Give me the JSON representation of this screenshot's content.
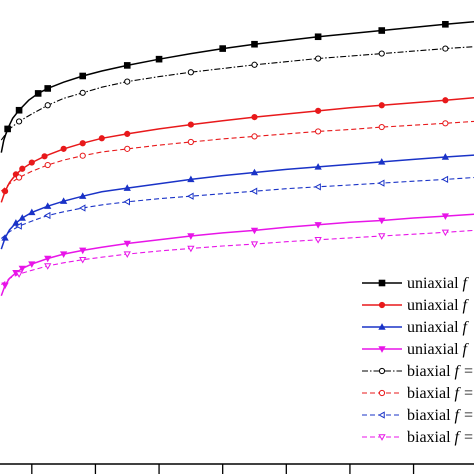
{
  "chart_data": {
    "type": "line",
    "title": "",
    "xlabel": "",
    "ylabel": "",
    "xlim": [
      0,
      7.45
    ],
    "ylim": [
      0,
      7.45
    ],
    "grid": false,
    "legend_placement": "bottom-right",
    "x_tick_values": [
      0.5,
      1.5,
      2.5,
      3.5,
      4.5,
      5.5,
      6.5
    ],
    "series": [
      {
        "name": "uniaxial f",
        "color": "#000000",
        "dash": "solid",
        "marker": "square",
        "marker_fill": "filled",
        "points": [
          [
            0.02,
            5.0
          ],
          [
            0.06,
            5.2
          ],
          [
            0.12,
            5.38
          ],
          [
            0.2,
            5.55
          ],
          [
            0.3,
            5.68
          ],
          [
            0.45,
            5.84
          ],
          [
            0.6,
            5.95
          ],
          [
            0.75,
            6.03
          ],
          [
            1.0,
            6.13
          ],
          [
            1.3,
            6.23
          ],
          [
            1.6,
            6.31
          ],
          [
            2.0,
            6.4
          ],
          [
            2.5,
            6.5
          ],
          [
            3.0,
            6.59
          ],
          [
            3.5,
            6.67
          ],
          [
            4.0,
            6.74
          ],
          [
            4.5,
            6.8
          ],
          [
            5.0,
            6.86
          ],
          [
            5.5,
            6.91
          ],
          [
            6.0,
            6.96
          ],
          [
            6.5,
            7.01
          ],
          [
            7.0,
            7.06
          ],
          [
            7.45,
            7.1
          ]
        ],
        "marker_every": [
          2,
          4,
          6,
          7,
          9,
          11,
          12,
          14,
          15,
          17,
          19,
          21
        ]
      },
      {
        "name": "biaxial f",
        "color": "#000000",
        "dash": "dashdot",
        "marker": "circle",
        "marker_fill": "open",
        "points": [
          [
            0.02,
            5.2
          ],
          [
            0.15,
            5.38
          ],
          [
            0.3,
            5.5
          ],
          [
            0.5,
            5.62
          ],
          [
            0.75,
            5.76
          ],
          [
            1.0,
            5.87
          ],
          [
            1.3,
            5.96
          ],
          [
            1.6,
            6.05
          ],
          [
            2.0,
            6.14
          ],
          [
            2.5,
            6.22
          ],
          [
            3.0,
            6.29
          ],
          [
            3.5,
            6.35
          ],
          [
            4.0,
            6.41
          ],
          [
            4.5,
            6.46
          ],
          [
            5.0,
            6.51
          ],
          [
            5.5,
            6.55
          ],
          [
            6.0,
            6.59
          ],
          [
            6.5,
            6.63
          ],
          [
            7.0,
            6.67
          ],
          [
            7.45,
            6.7
          ]
        ],
        "marker_every": [
          2,
          4,
          6,
          8,
          10,
          12,
          14,
          16,
          18
        ]
      },
      {
        "name": "uniaxial f",
        "color": "#e8191b",
        "dash": "solid",
        "marker": "circle",
        "marker_fill": "filled",
        "points": [
          [
            0.02,
            4.2
          ],
          [
            0.08,
            4.38
          ],
          [
            0.15,
            4.52
          ],
          [
            0.25,
            4.65
          ],
          [
            0.35,
            4.74
          ],
          [
            0.5,
            4.84
          ],
          [
            0.7,
            4.94
          ],
          [
            1.0,
            5.06
          ],
          [
            1.3,
            5.15
          ],
          [
            1.6,
            5.23
          ],
          [
            2.0,
            5.3
          ],
          [
            2.5,
            5.38
          ],
          [
            3.0,
            5.45
          ],
          [
            3.5,
            5.51
          ],
          [
            4.0,
            5.57
          ],
          [
            4.5,
            5.62
          ],
          [
            5.0,
            5.67
          ],
          [
            5.5,
            5.72
          ],
          [
            6.0,
            5.76
          ],
          [
            6.5,
            5.8
          ],
          [
            7.0,
            5.84
          ],
          [
            7.45,
            5.88
          ]
        ],
        "marker_every": [
          1,
          3,
          4,
          5,
          6,
          7,
          8,
          9,
          10,
          12,
          14,
          16,
          18,
          20
        ]
      },
      {
        "name": "biaxial f",
        "color": "#e8191b",
        "dash": "dash",
        "marker": "circle",
        "marker_fill": "open",
        "points": [
          [
            0.02,
            4.38
          ],
          [
            0.15,
            4.5
          ],
          [
            0.3,
            4.6
          ],
          [
            0.5,
            4.7
          ],
          [
            0.75,
            4.8
          ],
          [
            1.0,
            4.88
          ],
          [
            1.3,
            4.95
          ],
          [
            1.6,
            5.01
          ],
          [
            2.0,
            5.06
          ],
          [
            2.5,
            5.12
          ],
          [
            3.0,
            5.17
          ],
          [
            3.5,
            5.22
          ],
          [
            4.0,
            5.26
          ],
          [
            4.5,
            5.3
          ],
          [
            5.0,
            5.34
          ],
          [
            5.5,
            5.37
          ],
          [
            6.0,
            5.41
          ],
          [
            6.5,
            5.44
          ],
          [
            7.0,
            5.47
          ],
          [
            7.45,
            5.5
          ]
        ],
        "marker_every": [
          2,
          4,
          6,
          8,
          10,
          12,
          14,
          16,
          18
        ]
      },
      {
        "name": "uniaxial f",
        "color": "#1a33c7",
        "dash": "solid",
        "marker": "triangle-up",
        "marker_fill": "filled",
        "points": [
          [
            0.02,
            3.45
          ],
          [
            0.08,
            3.63
          ],
          [
            0.15,
            3.76
          ],
          [
            0.25,
            3.87
          ],
          [
            0.35,
            3.95
          ],
          [
            0.5,
            4.04
          ],
          [
            0.75,
            4.14
          ],
          [
            1.0,
            4.22
          ],
          [
            1.3,
            4.3
          ],
          [
            1.6,
            4.37
          ],
          [
            2.0,
            4.43
          ],
          [
            2.5,
            4.5
          ],
          [
            3.0,
            4.57
          ],
          [
            3.5,
            4.63
          ],
          [
            4.0,
            4.68
          ],
          [
            4.5,
            4.73
          ],
          [
            5.0,
            4.77
          ],
          [
            5.5,
            4.81
          ],
          [
            6.0,
            4.85
          ],
          [
            6.5,
            4.89
          ],
          [
            7.0,
            4.93
          ],
          [
            7.45,
            4.96
          ]
        ],
        "marker_every": [
          1,
          3,
          4,
          5,
          6,
          7,
          8,
          10,
          12,
          14,
          16,
          18,
          20
        ]
      },
      {
        "name": "biaxial f",
        "color": "#1a33c7",
        "dash": "dash",
        "marker": "triangle-left",
        "marker_fill": "open",
        "points": [
          [
            0.02,
            3.62
          ],
          [
            0.15,
            3.73
          ],
          [
            0.3,
            3.82
          ],
          [
            0.5,
            3.9
          ],
          [
            0.75,
            3.99
          ],
          [
            1.0,
            4.05
          ],
          [
            1.3,
            4.11
          ],
          [
            1.6,
            4.16
          ],
          [
            2.0,
            4.21
          ],
          [
            2.5,
            4.26
          ],
          [
            3.0,
            4.3
          ],
          [
            3.5,
            4.34
          ],
          [
            4.0,
            4.38
          ],
          [
            4.5,
            4.42
          ],
          [
            5.0,
            4.45
          ],
          [
            5.5,
            4.48
          ],
          [
            6.0,
            4.51
          ],
          [
            6.5,
            4.54
          ],
          [
            7.0,
            4.57
          ],
          [
            7.45,
            4.6
          ]
        ],
        "marker_every": [
          2,
          4,
          6,
          8,
          10,
          12,
          14,
          16,
          18
        ]
      },
      {
        "name": "uniaxial f",
        "color": "#e815e8",
        "dash": "solid",
        "marker": "triangle-down",
        "marker_fill": "filled",
        "points": [
          [
            0.02,
            2.7
          ],
          [
            0.08,
            2.87
          ],
          [
            0.15,
            2.98
          ],
          [
            0.25,
            3.07
          ],
          [
            0.35,
            3.14
          ],
          [
            0.5,
            3.21
          ],
          [
            0.75,
            3.3
          ],
          [
            1.0,
            3.37
          ],
          [
            1.3,
            3.43
          ],
          [
            1.6,
            3.48
          ],
          [
            2.0,
            3.54
          ],
          [
            2.5,
            3.6
          ],
          [
            3.0,
            3.66
          ],
          [
            3.5,
            3.71
          ],
          [
            4.0,
            3.75
          ],
          [
            4.5,
            3.8
          ],
          [
            5.0,
            3.84
          ],
          [
            5.5,
            3.88
          ],
          [
            6.0,
            3.91
          ],
          [
            6.5,
            3.95
          ],
          [
            7.0,
            3.98
          ],
          [
            7.45,
            4.01
          ]
        ],
        "marker_every": [
          1,
          3,
          4,
          5,
          6,
          7,
          8,
          10,
          12,
          14,
          16,
          18,
          20
        ]
      },
      {
        "name": "biaxial f",
        "color": "#e815e8",
        "dash": "dash",
        "marker": "triangle-down",
        "marker_fill": "open",
        "points": [
          [
            0.02,
            2.88
          ],
          [
            0.15,
            2.98
          ],
          [
            0.3,
            3.05
          ],
          [
            0.5,
            3.11
          ],
          [
            0.75,
            3.18
          ],
          [
            1.0,
            3.23
          ],
          [
            1.3,
            3.28
          ],
          [
            1.6,
            3.32
          ],
          [
            2.0,
            3.37
          ],
          [
            2.5,
            3.42
          ],
          [
            3.0,
            3.46
          ],
          [
            3.5,
            3.5
          ],
          [
            4.0,
            3.53
          ],
          [
            4.5,
            3.57
          ],
          [
            5.0,
            3.6
          ],
          [
            5.5,
            3.63
          ],
          [
            6.0,
            3.66
          ],
          [
            6.5,
            3.69
          ],
          [
            7.0,
            3.72
          ],
          [
            7.45,
            3.75
          ]
        ],
        "marker_every": [
          2,
          4,
          6,
          8,
          10,
          12,
          14,
          16,
          18
        ]
      }
    ],
    "legend": {
      "entries": [
        {
          "label": "uniaxial",
          "italic_suffix": "f",
          "series_index": 0
        },
        {
          "label": "uniaxial",
          "italic_suffix": "f",
          "series_index": 2
        },
        {
          "label": "uniaxial",
          "italic_suffix": "f",
          "series_index": 4
        },
        {
          "label": "uniaxial",
          "italic_suffix": "f",
          "series_index": 6
        },
        {
          "label": "biaxial",
          "italic_suffix": "f =",
          "series_index": 1
        },
        {
          "label": "biaxial",
          "italic_suffix": "f =",
          "series_index": 3
        },
        {
          "label": "biaxial",
          "italic_suffix": "f =",
          "series_index": 5
        },
        {
          "label": "biaxial",
          "italic_suffix": "f =",
          "series_index": 7
        }
      ]
    }
  }
}
